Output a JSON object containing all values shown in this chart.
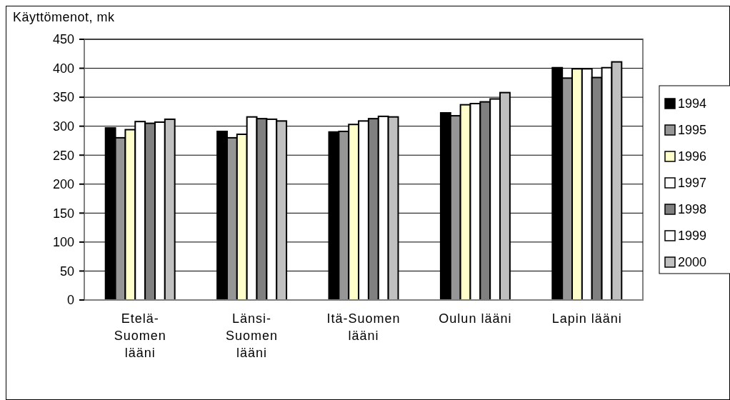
{
  "chart_data": {
    "type": "bar",
    "ylabel": "Käyttömenot, mk",
    "categories": [
      "Etelä-Suomen lääni",
      "Länsi-Suomen lääni",
      "Itä-Suomen lääni",
      "Oulun lääni",
      "Lapin lääni"
    ],
    "series": [
      {
        "name": "1994",
        "color": "#000000",
        "values": [
          297,
          291,
          290,
          323,
          401
        ]
      },
      {
        "name": "1995",
        "color": "#969696",
        "values": [
          280,
          280,
          291,
          318,
          383
        ]
      },
      {
        "name": "1996",
        "color": "#ffffcc",
        "values": [
          294,
          286,
          303,
          337,
          399
        ]
      },
      {
        "name": "1997",
        "color": "#ffffff",
        "values": [
          308,
          316,
          309,
          339,
          399
        ]
      },
      {
        "name": "1998",
        "color": "#808080",
        "values": [
          305,
          313,
          313,
          342,
          384
        ]
      },
      {
        "name": "1999",
        "color": "#ffffff",
        "values": [
          307,
          312,
          317,
          347,
          401
        ]
      },
      {
        "name": "2000",
        "color": "#c0c0c0",
        "values": [
          312,
          309,
          316,
          358,
          411
        ]
      }
    ],
    "ylim": [
      0,
      450
    ],
    "yticks": [
      0,
      50,
      100,
      150,
      200,
      250,
      300,
      350,
      400,
      450
    ],
    "grid": "y",
    "legend": "right"
  }
}
